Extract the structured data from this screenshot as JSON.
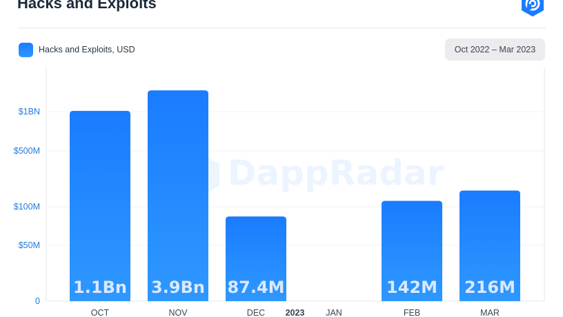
{
  "header": {
    "title": "Hacks and Exploits",
    "legend_label": "Hacks and Exploits, USD",
    "date_range": "Oct 2022 – Mar 2023"
  },
  "watermark": {
    "text": "DappRadar"
  },
  "colors": {
    "bar_top": "#1a7cff",
    "bar_bottom": "#2e98ff",
    "tick_text": "#1d7be0",
    "grid": "#eef0f3"
  },
  "icons": {
    "brand": "dappradar-logo-icon"
  },
  "chart_data": {
    "type": "bar",
    "title": "Hacks and Exploits",
    "scale": "categorical-log-like",
    "yticks": [
      {
        "label": "0",
        "value": 0
      },
      {
        "label": "$50M",
        "value": 50000000
      },
      {
        "label": "$100M",
        "value": 100000000
      },
      {
        "label": "$500M",
        "value": 500000000
      },
      {
        "label": "$1BN",
        "value": 1000000000
      }
    ],
    "categories": [
      "OCT",
      "NOV",
      "DEC",
      "JAN",
      "FEB",
      "MAR"
    ],
    "year_marker": {
      "label": "2023",
      "before_category": "JAN"
    },
    "series": [
      {
        "name": "Hacks and Exploits, USD",
        "values": [
          1100000000,
          3900000000,
          87400000,
          0,
          142000000,
          216000000
        ],
        "labels": [
          "1.1Bn",
          "3.9Bn",
          "87.4M",
          "",
          "142M",
          "216M"
        ]
      }
    ],
    "grid": true,
    "legend_position": "top-left"
  }
}
